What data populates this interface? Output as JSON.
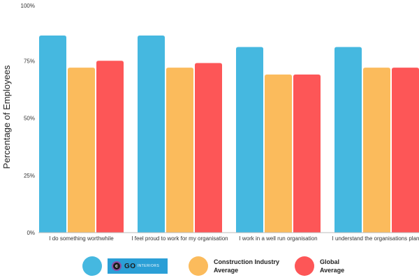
{
  "chart_data": {
    "type": "bar",
    "title": "",
    "ylabel": "Percentage of Employees",
    "xlabel": "",
    "ylim": [
      0,
      100
    ],
    "yticks": [
      0,
      25,
      50,
      75,
      100
    ],
    "ytick_labels": [
      "0%",
      "25%",
      "50%",
      "75%",
      "100%"
    ],
    "grid": false,
    "legend_position": "bottom",
    "categories": [
      "I do something worthwhile",
      "I feel proud to work for my organisation",
      "I work in a well run organisation",
      "I understand the organisations plan"
    ],
    "series": [
      {
        "values": [
          86,
          86,
          81,
          81
        ],
        "color": "#45b8e0"
      },
      {
        "name": "Construction Industry Average",
        "values": [
          72,
          72,
          69,
          72
        ],
        "color": "#fbbb5c"
      },
      {
        "name": "Global Average",
        "values": [
          75,
          74,
          69,
          72
        ],
        "color": "#fd5657"
      }
    ]
  },
  "legend": {
    "items": [
      {
        "label_line1": "",
        "label_line2": "",
        "color": "#45b8e0",
        "icon": "go-interiors-logo"
      },
      {
        "label_line1": "Construction Industry",
        "label_line2": "Average",
        "color": "#fbbb5c"
      },
      {
        "label_line1": "Global",
        "label_line2": "Average",
        "color": "#fd5657"
      }
    ],
    "logo_text": "GO",
    "logo_subtext": "INTERIORS"
  }
}
